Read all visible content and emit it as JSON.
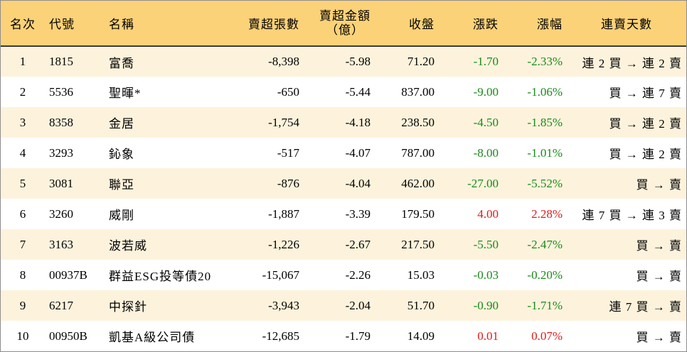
{
  "headers": {
    "rank": "名次",
    "code": "代號",
    "name": "名稱",
    "net_sell_lots": "賣超張數",
    "net_sell_amount_line1": "賣超金額",
    "net_sell_amount_line2": "（億）",
    "close": "收盤",
    "change": "漲跌",
    "change_pct": "漲幅",
    "consecutive_sell_days": "連賣天數"
  },
  "colors": {
    "header_bg": "#fcd278",
    "stripe_bg": "#fdf3dc",
    "down": "#1a8a1a",
    "up": "#e01b1b"
  },
  "rows": [
    {
      "rank": "1",
      "code": "1815",
      "name": "富喬",
      "net_sell_lots": "-8,398",
      "net_sell_amount": "-5.98",
      "close": "71.20",
      "change": "-1.70",
      "change_pct": "-2.33%",
      "trend": "down",
      "streak": "連 2 買 → 連 2 賣"
    },
    {
      "rank": "2",
      "code": "5536",
      "name": "聖暉*",
      "net_sell_lots": "-650",
      "net_sell_amount": "-5.44",
      "close": "837.00",
      "change": "-9.00",
      "change_pct": "-1.06%",
      "trend": "down",
      "streak": "買 → 連 7 賣"
    },
    {
      "rank": "3",
      "code": "8358",
      "name": "金居",
      "net_sell_lots": "-1,754",
      "net_sell_amount": "-4.18",
      "close": "238.50",
      "change": "-4.50",
      "change_pct": "-1.85%",
      "trend": "down",
      "streak": "買 → 連 2 賣"
    },
    {
      "rank": "4",
      "code": "3293",
      "name": "鈊象",
      "net_sell_lots": "-517",
      "net_sell_amount": "-4.07",
      "close": "787.00",
      "change": "-8.00",
      "change_pct": "-1.01%",
      "trend": "down",
      "streak": "買 → 連 2 賣"
    },
    {
      "rank": "5",
      "code": "3081",
      "name": "聯亞",
      "net_sell_lots": "-876",
      "net_sell_amount": "-4.04",
      "close": "462.00",
      "change": "-27.00",
      "change_pct": "-5.52%",
      "trend": "down",
      "streak": "買 → 賣"
    },
    {
      "rank": "6",
      "code": "3260",
      "name": "威剛",
      "net_sell_lots": "-1,887",
      "net_sell_amount": "-3.39",
      "close": "179.50",
      "change": "4.00",
      "change_pct": "2.28%",
      "trend": "up",
      "streak": "連 7 買 → 連 3 賣"
    },
    {
      "rank": "7",
      "code": "3163",
      "name": "波若威",
      "net_sell_lots": "-1,226",
      "net_sell_amount": "-2.67",
      "close": "217.50",
      "change": "-5.50",
      "change_pct": "-2.47%",
      "trend": "down",
      "streak": "買 → 賣"
    },
    {
      "rank": "8",
      "code": "00937B",
      "name": "群益ESG投等債20",
      "net_sell_lots": "-15,067",
      "net_sell_amount": "-2.26",
      "close": "15.03",
      "change": "-0.03",
      "change_pct": "-0.20%",
      "trend": "down",
      "streak": "買 → 賣"
    },
    {
      "rank": "9",
      "code": "6217",
      "name": "中探針",
      "net_sell_lots": "-3,943",
      "net_sell_amount": "-2.04",
      "close": "51.70",
      "change": "-0.90",
      "change_pct": "-1.71%",
      "trend": "down",
      "streak": "連 7 買 → 賣"
    },
    {
      "rank": "10",
      "code": "00950B",
      "name": "凱基A級公司債",
      "net_sell_lots": "-12,685",
      "net_sell_amount": "-1.79",
      "close": "14.09",
      "change": "0.01",
      "change_pct": "0.07%",
      "trend": "up",
      "streak": "買 → 賣"
    }
  ]
}
